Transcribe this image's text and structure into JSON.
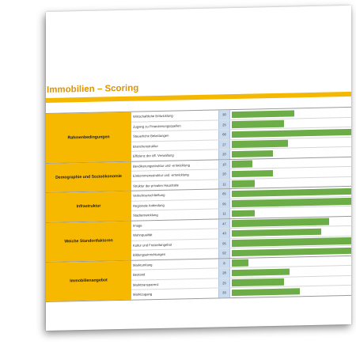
{
  "title": "Immobilien – Scoring",
  "max_value": 100,
  "bar_color": "#6cad48",
  "category_color": "#f7b800",
  "groups": [
    {
      "label": "Rahmenbedingungen",
      "rows": [
        {
          "criterion": "Wirtschaftliche Entwicklung",
          "value": 30
        },
        {
          "criterion": "Zugang zu Finanzierungsquellen",
          "value": 25
        },
        {
          "criterion": "Steuerliche Belastungen",
          "value": 66
        },
        {
          "criterion": "Branchenstruktur",
          "value": 27
        },
        {
          "criterion": "Effizienz der öff. Verwaltung",
          "value": 20
        }
      ]
    },
    {
      "label": "Demographie und Sozioökonomie",
      "rows": [
        {
          "criterion": "Bevölkerungsstruktur und -entwicklung",
          "value": 10
        },
        {
          "criterion": "Einkommensstruktur und -entwicklung",
          "value": 20
        },
        {
          "criterion": "Struktur der privaten Haushalte",
          "value": 11
        }
      ]
    },
    {
      "label": "Infrastruktur",
      "rows": [
        {
          "criterion": "Verkehrserschließung",
          "value": 65
        },
        {
          "criterion": "Regionale Anbindung",
          "value": 95
        },
        {
          "criterion": "Stadtentwicklung",
          "value": 11
        }
      ]
    },
    {
      "label": "Weiche Standortfaktoren",
      "rows": [
        {
          "criterion": "Image",
          "value": 47
        },
        {
          "criterion": "Wohnqualität",
          "value": 43
        },
        {
          "criterion": "Kultur und Freizeitangebot",
          "value": 95
        },
        {
          "criterion": "Bildungseinrichtungen",
          "value": 92
        }
      ]
    },
    {
      "label": "Immobilienangebot",
      "rows": [
        {
          "criterion": "Marktumfang",
          "value": 8
        },
        {
          "criterion": "Bestand",
          "value": 28
        },
        {
          "criterion": "Markttransparenz",
          "value": 25
        },
        {
          "criterion": "Marktzugang",
          "value": 33
        }
      ]
    }
  ]
}
